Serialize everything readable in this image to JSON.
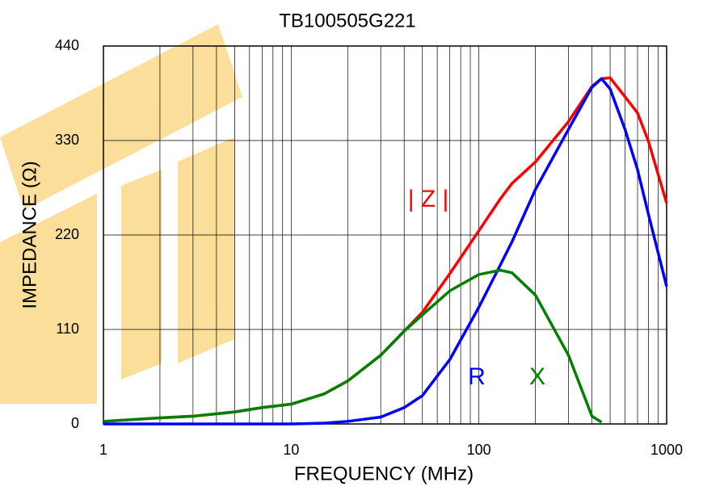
{
  "chart_data": {
    "type": "line",
    "title": "TB100505G221",
    "xlabel": "FREQUENCY (MHz)",
    "ylabel": "IMPEDANCE (Ω)",
    "xscale": "log",
    "xlim": [
      1,
      1000
    ],
    "xticks": [
      1,
      10,
      100,
      1000
    ],
    "ylim": [
      0,
      440
    ],
    "yticks": [
      0,
      110,
      220,
      330,
      440
    ],
    "grid": true,
    "x": [
      1,
      2,
      3,
      5,
      7,
      10,
      15,
      20,
      30,
      40,
      50,
      70,
      100,
      130,
      150,
      200,
      300,
      400,
      450,
      500,
      600,
      700,
      800,
      1000
    ],
    "series": [
      {
        "name": "| Z |",
        "color": "#ff0000",
        "values": [
          3,
          7,
          9,
          14,
          19,
          23,
          35,
          50,
          80,
          108,
          130,
          175,
          225,
          262,
          280,
          305,
          352,
          393,
          402,
          403,
          381,
          362,
          329,
          257
        ]
      },
      {
        "name": "R",
        "color": "#0000ff",
        "values": [
          0,
          0,
          0,
          0,
          0,
          0,
          1,
          3,
          8,
          19,
          33,
          75,
          136,
          185,
          212,
          273,
          343,
          392,
          402,
          390,
          343,
          296,
          244,
          160
        ]
      },
      {
        "name": "X",
        "color": "#008000",
        "values": [
          3,
          7,
          9,
          14,
          19,
          23,
          35,
          50,
          80,
          108,
          127,
          155,
          174,
          179,
          176,
          150,
          80,
          9,
          2,
          null,
          null,
          null,
          null,
          null
        ]
      }
    ]
  }
}
